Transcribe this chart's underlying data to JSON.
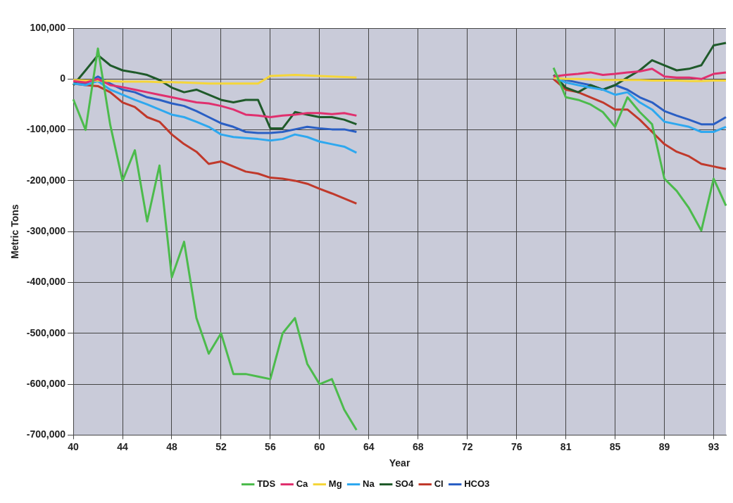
{
  "chart_data": {
    "type": "line",
    "xlabel": "Year",
    "ylabel": "Metric Tons",
    "categories": [
      "40",
      null,
      null,
      null,
      "44",
      null,
      null,
      null,
      "48",
      null,
      null,
      null,
      "52",
      null,
      null,
      null,
      "56",
      null,
      null,
      null,
      "60",
      null,
      null,
      null,
      "64",
      null,
      null,
      null,
      "68",
      null,
      null,
      null,
      "72",
      null,
      null,
      null,
      "76",
      null,
      null,
      null,
      "81",
      null,
      null,
      null,
      "85",
      null,
      null,
      null,
      "89",
      null,
      null,
      null,
      "93",
      null
    ],
    "series": [
      {
        "name": "TDS",
        "color": "#4cbb4c",
        "values": [
          -40000,
          -100000,
          60000,
          -90000,
          -200000,
          -140000,
          -280000,
          -170000,
          -390000,
          -320000,
          -470000,
          -540000,
          -500000,
          -580000,
          -580000,
          -585000,
          -590000,
          -500000,
          -470000,
          -560000,
          -600000,
          -590000,
          -650000,
          -690000,
          null,
          null,
          null,
          null,
          null,
          null,
          null,
          null,
          null,
          null,
          null,
          null,
          null,
          null,
          null,
          22000,
          -36000,
          -41000,
          -50000,
          -65000,
          -94000,
          -36000,
          -65000,
          -89000,
          -196000,
          -220000,
          -254000,
          -298000,
          -196000,
          -249000
        ]
      },
      {
        "name": "Ca",
        "color": "#e0306e",
        "values": [
          -4000,
          -7000,
          0,
          -12000,
          -16000,
          -21000,
          -26000,
          -31000,
          -36000,
          -41000,
          -46000,
          -48000,
          -53000,
          -60000,
          -70000,
          -72000,
          -75000,
          -72000,
          -70000,
          -67000,
          -67000,
          -69000,
          -67000,
          -72000,
          null,
          null,
          null,
          null,
          null,
          null,
          null,
          null,
          null,
          null,
          null,
          null,
          null,
          null,
          null,
          5000,
          8000,
          10000,
          13000,
          8000,
          10000,
          13000,
          15000,
          20000,
          5000,
          3000,
          3000,
          0,
          10000,
          13000
        ]
      },
      {
        "name": "Mg",
        "color": "#f5d63a",
        "values": [
          -2000,
          -3000,
          -3000,
          -4000,
          -5000,
          -5000,
          -5000,
          -6000,
          -6000,
          -7000,
          -8000,
          -9000,
          -9000,
          -9000,
          -9000,
          -9000,
          6000,
          7000,
          8000,
          7000,
          6000,
          5000,
          4000,
          3000,
          null,
          null,
          null,
          null,
          null,
          null,
          null,
          null,
          null,
          null,
          null,
          null,
          null,
          null,
          null,
          2000,
          0,
          0,
          -1000,
          -2000,
          -2000,
          -2000,
          -2000,
          -3000,
          -3000,
          -3000,
          -4000,
          -4000,
          -3000,
          -3000
        ]
      },
      {
        "name": "Na",
        "color": "#2ea8ef",
        "values": [
          -9000,
          -12000,
          -4000,
          -21000,
          -31000,
          -41000,
          -50000,
          -60000,
          -70000,
          -75000,
          -84000,
          -94000,
          -109000,
          -114000,
          -116000,
          -118000,
          -121000,
          -118000,
          -109000,
          -114000,
          -123000,
          -128000,
          -133000,
          -145000,
          null,
          null,
          null,
          null,
          null,
          null,
          null,
          null,
          null,
          null,
          null,
          null,
          null,
          null,
          null,
          3000,
          -7000,
          -12000,
          -17000,
          -21000,
          -31000,
          -26000,
          -46000,
          -60000,
          -84000,
          -89000,
          -94000,
          -104000,
          -104000,
          -94000
        ]
      },
      {
        "name": "SO4",
        "color": "#1f5a2a",
        "values": [
          -12000,
          17000,
          47000,
          27000,
          17000,
          13000,
          8000,
          -2000,
          -17000,
          -26000,
          -21000,
          -31000,
          -41000,
          -46000,
          -41000,
          -41000,
          -97000,
          -97000,
          -65000,
          -70000,
          -75000,
          -75000,
          -80000,
          -89000,
          null,
          null,
          null,
          null,
          null,
          null,
          null,
          null,
          null,
          null,
          null,
          null,
          null,
          null,
          null,
          8000,
          -17000,
          -26000,
          -12000,
          -21000,
          -12000,
          3000,
          17000,
          37000,
          27000,
          17000,
          20000,
          27000,
          66000,
          71000
        ]
      },
      {
        "name": "Cl",
        "color": "#c0392b",
        "values": [
          -9000,
          -12000,
          -14000,
          -26000,
          -46000,
          -55000,
          -75000,
          -84000,
          -109000,
          -128000,
          -143000,
          -167000,
          -162000,
          -172000,
          -182000,
          -186000,
          -194000,
          -196000,
          -200000,
          -206000,
          -216000,
          -225000,
          -235000,
          -245000,
          null,
          null,
          null,
          null,
          null,
          null,
          null,
          null,
          null,
          null,
          null,
          null,
          null,
          null,
          null,
          0,
          -21000,
          -26000,
          -36000,
          -46000,
          -60000,
          -60000,
          -80000,
          -104000,
          -128000,
          -143000,
          -152000,
          -167000,
          -172000,
          -177000
        ]
      },
      {
        "name": "HCO3",
        "color": "#2a5fc4",
        "values": [
          -7000,
          -9000,
          5000,
          -9000,
          -21000,
          -26000,
          -36000,
          -41000,
          -48000,
          -53000,
          -63000,
          -75000,
          -87000,
          -94000,
          -104000,
          -106000,
          -106000,
          -104000,
          -99000,
          -94000,
          -97000,
          -99000,
          -99000,
          -104000,
          null,
          null,
          null,
          null,
          null,
          null,
          null,
          null,
          null,
          null,
          null,
          null,
          null,
          null,
          null,
          5000,
          -2000,
          -7000,
          -12000,
          -21000,
          -12000,
          -21000,
          -36000,
          -46000,
          -63000,
          -72000,
          -80000,
          -89000,
          -89000,
          -75000
        ]
      }
    ],
    "ylim": [
      -700000,
      100000
    ],
    "yticks": [
      {
        "value": -700000,
        "label": "-700,000"
      },
      {
        "value": -600000,
        "label": "-600,000"
      },
      {
        "value": -500000,
        "label": "-500,000"
      },
      {
        "value": -400000,
        "label": "-400,000"
      },
      {
        "value": -300000,
        "label": "-300,000"
      },
      {
        "value": -200000,
        "label": "-200,000"
      },
      {
        "value": -100000,
        "label": "-100,000"
      },
      {
        "value": 0,
        "label": "0"
      },
      {
        "value": 100000,
        "label": "100,000"
      }
    ],
    "grid": true,
    "legend": "bottom",
    "marker": "none",
    "line_style": "solid"
  }
}
